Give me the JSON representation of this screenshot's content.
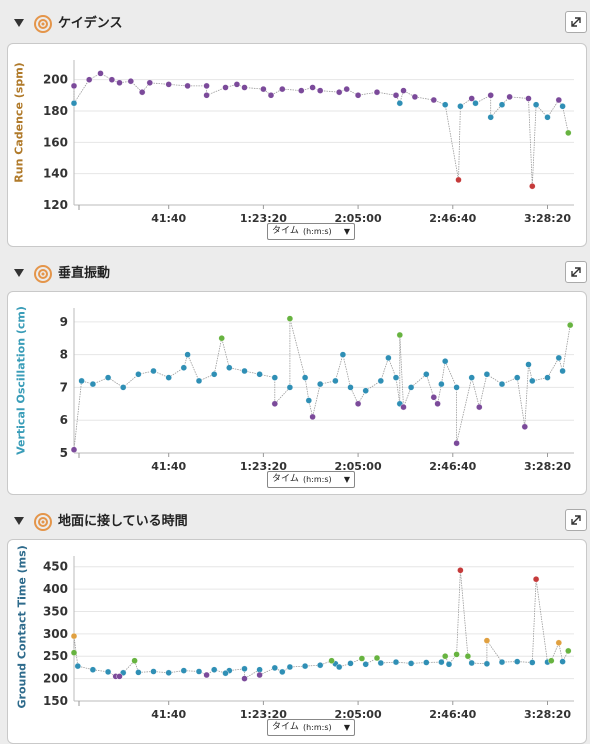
{
  "sections": [
    {
      "title": "ケイデンス",
      "ylabel": "Run Cadence (spm)",
      "ylabel_color": "#b07a2a"
    },
    {
      "title": "垂直振動",
      "ylabel": "Vertical Oscillation (cm)",
      "ylabel_color": "#3a9db8"
    },
    {
      "title": "地面に接している時間",
      "ylabel": "Ground Contact Time (ms)",
      "ylabel_color": "#2e6b8c"
    }
  ],
  "dropdown": {
    "text": "タイム",
    "unit": "(h:m:s)",
    "arrow": "▼"
  },
  "colors": {
    "purple": "#7b4a9a",
    "teal": "#2f8fb5",
    "green": "#67b340",
    "red": "#c53a3a",
    "orange": "#e0a040",
    "line": "#9a9a9a",
    "grid": "#e6e6e6"
  },
  "chart_data": [
    {
      "type": "scatter",
      "title": "ケイデンス",
      "ylabel": "Run Cadence (spm)",
      "xlabel": "タイム (h:m:s)",
      "x_ticks": [
        "41:40",
        "1:23:20",
        "2:05:00",
        "2:46:40",
        "3:28:20"
      ],
      "x_tick_seconds": [
        2500,
        5000,
        7500,
        10000,
        12500
      ],
      "x_range_seconds": [
        0,
        13200
      ],
      "y_ticks": [
        120,
        140,
        160,
        180,
        200
      ],
      "ylim": [
        120,
        210
      ],
      "grid": true,
      "series": [
        {
          "color": "purple",
          "points": [
            [
              0,
              196
            ],
            [
              400,
              200
            ],
            [
              700,
              204
            ],
            [
              1000,
              200
            ],
            [
              1500,
              199
            ],
            [
              2000,
              198
            ],
            [
              2500,
              197
            ],
            [
              3000,
              196
            ],
            [
              3500,
              196
            ],
            [
              4000,
              195
            ],
            [
              4500,
              195
            ],
            [
              5000,
              194
            ],
            [
              5500,
              194
            ],
            [
              6000,
              193
            ],
            [
              6500,
              193
            ],
            [
              7000,
              192
            ],
            [
              7500,
              190
            ],
            [
              8000,
              192
            ],
            [
              8500,
              190
            ],
            [
              9000,
              189
            ],
            [
              9500,
              187
            ],
            [
              10500,
              188
            ],
            [
              11500,
              189
            ],
            [
              12000,
              188
            ],
            [
              12800,
              187
            ],
            [
              3500,
              190
            ],
            [
              1800,
              192
            ],
            [
              5200,
              190
            ],
            [
              7200,
              194
            ],
            [
              11000,
              190
            ],
            [
              1200,
              198
            ],
            [
              4300,
              197
            ],
            [
              6300,
              195
            ],
            [
              8700,
              193
            ]
          ]
        },
        {
          "color": "teal",
          "points": [
            [
              0,
              185
            ],
            [
              9800,
              184
            ],
            [
              10200,
              183
            ],
            [
              10600,
              185
            ],
            [
              11000,
              176
            ],
            [
              11300,
              184
            ],
            [
              12200,
              184
            ],
            [
              12500,
              176
            ],
            [
              12900,
              183
            ],
            [
              8600,
              185
            ]
          ]
        },
        {
          "color": "green",
          "points": [
            [
              13050,
              166
            ]
          ]
        },
        {
          "color": "red",
          "points": [
            [
              10150,
              136
            ],
            [
              12100,
              132
            ]
          ]
        }
      ]
    },
    {
      "type": "scatter",
      "title": "垂直振動",
      "ylabel": "Vertical Oscillation (cm)",
      "xlabel": "タイム (h:m:s)",
      "x_ticks": [
        "41:40",
        "1:23:20",
        "2:05:00",
        "2:46:40",
        "3:28:20"
      ],
      "x_tick_seconds": [
        2500,
        5000,
        7500,
        10000,
        12500
      ],
      "x_range_seconds": [
        0,
        13200
      ],
      "y_ticks": [
        5,
        6,
        7,
        8,
        9
      ],
      "ylim": [
        5,
        9.3
      ],
      "grid": true,
      "series": [
        {
          "color": "teal",
          "points": [
            [
              200,
              7.2
            ],
            [
              500,
              7.1
            ],
            [
              900,
              7.3
            ],
            [
              1300,
              7.0
            ],
            [
              1700,
              7.4
            ],
            [
              2100,
              7.5
            ],
            [
              2500,
              7.3
            ],
            [
              2900,
              7.6
            ],
            [
              3300,
              7.2
            ],
            [
              3700,
              7.4
            ],
            [
              4100,
              7.6
            ],
            [
              4500,
              7.5
            ],
            [
              4900,
              7.4
            ],
            [
              5300,
              7.3
            ],
            [
              5700,
              7.0
            ],
            [
              6100,
              7.3
            ],
            [
              6500,
              7.1
            ],
            [
              6900,
              7.2
            ],
            [
              7300,
              7.0
            ],
            [
              7700,
              6.9
            ],
            [
              8100,
              7.2
            ],
            [
              8500,
              7.3
            ],
            [
              8900,
              7.0
            ],
            [
              9300,
              7.4
            ],
            [
              9700,
              7.1
            ],
            [
              10100,
              7.0
            ],
            [
              10500,
              7.3
            ],
            [
              10900,
              7.4
            ],
            [
              11300,
              7.1
            ],
            [
              11700,
              7.3
            ],
            [
              12100,
              7.2
            ],
            [
              12500,
              7.3
            ],
            [
              12900,
              7.5
            ],
            [
              3000,
              8.0
            ],
            [
              7100,
              8.0
            ],
            [
              8300,
              7.9
            ],
            [
              9800,
              7.8
            ],
            [
              12000,
              7.7
            ],
            [
              12800,
              7.9
            ],
            [
              6200,
              6.6
            ],
            [
              8600,
              6.5
            ]
          ]
        },
        {
          "color": "purple",
          "points": [
            [
              0,
              5.1
            ],
            [
              5300,
              6.5
            ],
            [
              6300,
              6.1
            ],
            [
              7500,
              6.5
            ],
            [
              8700,
              6.4
            ],
            [
              9600,
              6.5
            ],
            [
              10100,
              5.3
            ],
            [
              10700,
              6.4
            ],
            [
              11900,
              5.8
            ],
            [
              9500,
              6.7
            ]
          ]
        },
        {
          "color": "green",
          "points": [
            [
              3900,
              8.5
            ],
            [
              5700,
              9.1
            ],
            [
              8600,
              8.6
            ],
            [
              13100,
              8.9
            ]
          ]
        }
      ]
    },
    {
      "type": "scatter",
      "title": "地面に接している時間",
      "ylabel": "Ground Contact Time (ms)",
      "xlabel": "タイム (h:m:s)",
      "x_ticks": [
        "41:40",
        "1:23:20",
        "2:05:00",
        "2:46:40",
        "3:28:20"
      ],
      "x_tick_seconds": [
        2500,
        5000,
        7500,
        10000,
        12500
      ],
      "x_range_seconds": [
        0,
        13200
      ],
      "y_ticks": [
        150,
        200,
        250,
        300,
        350,
        400,
        450
      ],
      "ylim": [
        150,
        465
      ],
      "grid": true,
      "series": [
        {
          "color": "teal",
          "points": [
            [
              100,
              228
            ],
            [
              500,
              220
            ],
            [
              900,
              215
            ],
            [
              1300,
              213
            ],
            [
              1700,
              214
            ],
            [
              2100,
              216
            ],
            [
              2500,
              213
            ],
            [
              2900,
              218
            ],
            [
              3300,
              216
            ],
            [
              3700,
              220
            ],
            [
              4100,
              218
            ],
            [
              4500,
              222
            ],
            [
              4900,
              220
            ],
            [
              5300,
              224
            ],
            [
              5700,
              226
            ],
            [
              6100,
              228
            ],
            [
              6500,
              230
            ],
            [
              6900,
              233
            ],
            [
              7300,
              234
            ],
            [
              7700,
              232
            ],
            [
              8100,
              235
            ],
            [
              8500,
              237
            ],
            [
              8900,
              234
            ],
            [
              9300,
              236
            ],
            [
              9700,
              237
            ],
            [
              10500,
              235
            ],
            [
              10900,
              233
            ],
            [
              11300,
              237
            ],
            [
              11700,
              238
            ],
            [
              12100,
              236
            ],
            [
              12500,
              237
            ],
            [
              12900,
              238
            ],
            [
              7000,
              226
            ],
            [
              4000,
              212
            ],
            [
              5500,
              215
            ],
            [
              9900,
              232
            ]
          ]
        },
        {
          "color": "green",
          "points": [
            [
              0,
              258
            ],
            [
              1600,
              240
            ],
            [
              6800,
              240
            ],
            [
              7600,
              245
            ],
            [
              8000,
              246
            ],
            [
              9800,
              250
            ],
            [
              10100,
              254
            ],
            [
              10400,
              250
            ],
            [
              12600,
              240
            ],
            [
              13050,
              262
            ]
          ]
        },
        {
          "color": "purple",
          "points": [
            [
              1100,
              205
            ],
            [
              1200,
              205
            ],
            [
              3500,
              208
            ],
            [
              4500,
              200
            ],
            [
              4900,
              208
            ]
          ]
        },
        {
          "color": "orange",
          "points": [
            [
              0,
              295
            ],
            [
              10900,
              285
            ],
            [
              12800,
              280
            ]
          ]
        },
        {
          "color": "red",
          "points": [
            [
              10200,
              442
            ],
            [
              12200,
              422
            ]
          ]
        }
      ]
    }
  ]
}
